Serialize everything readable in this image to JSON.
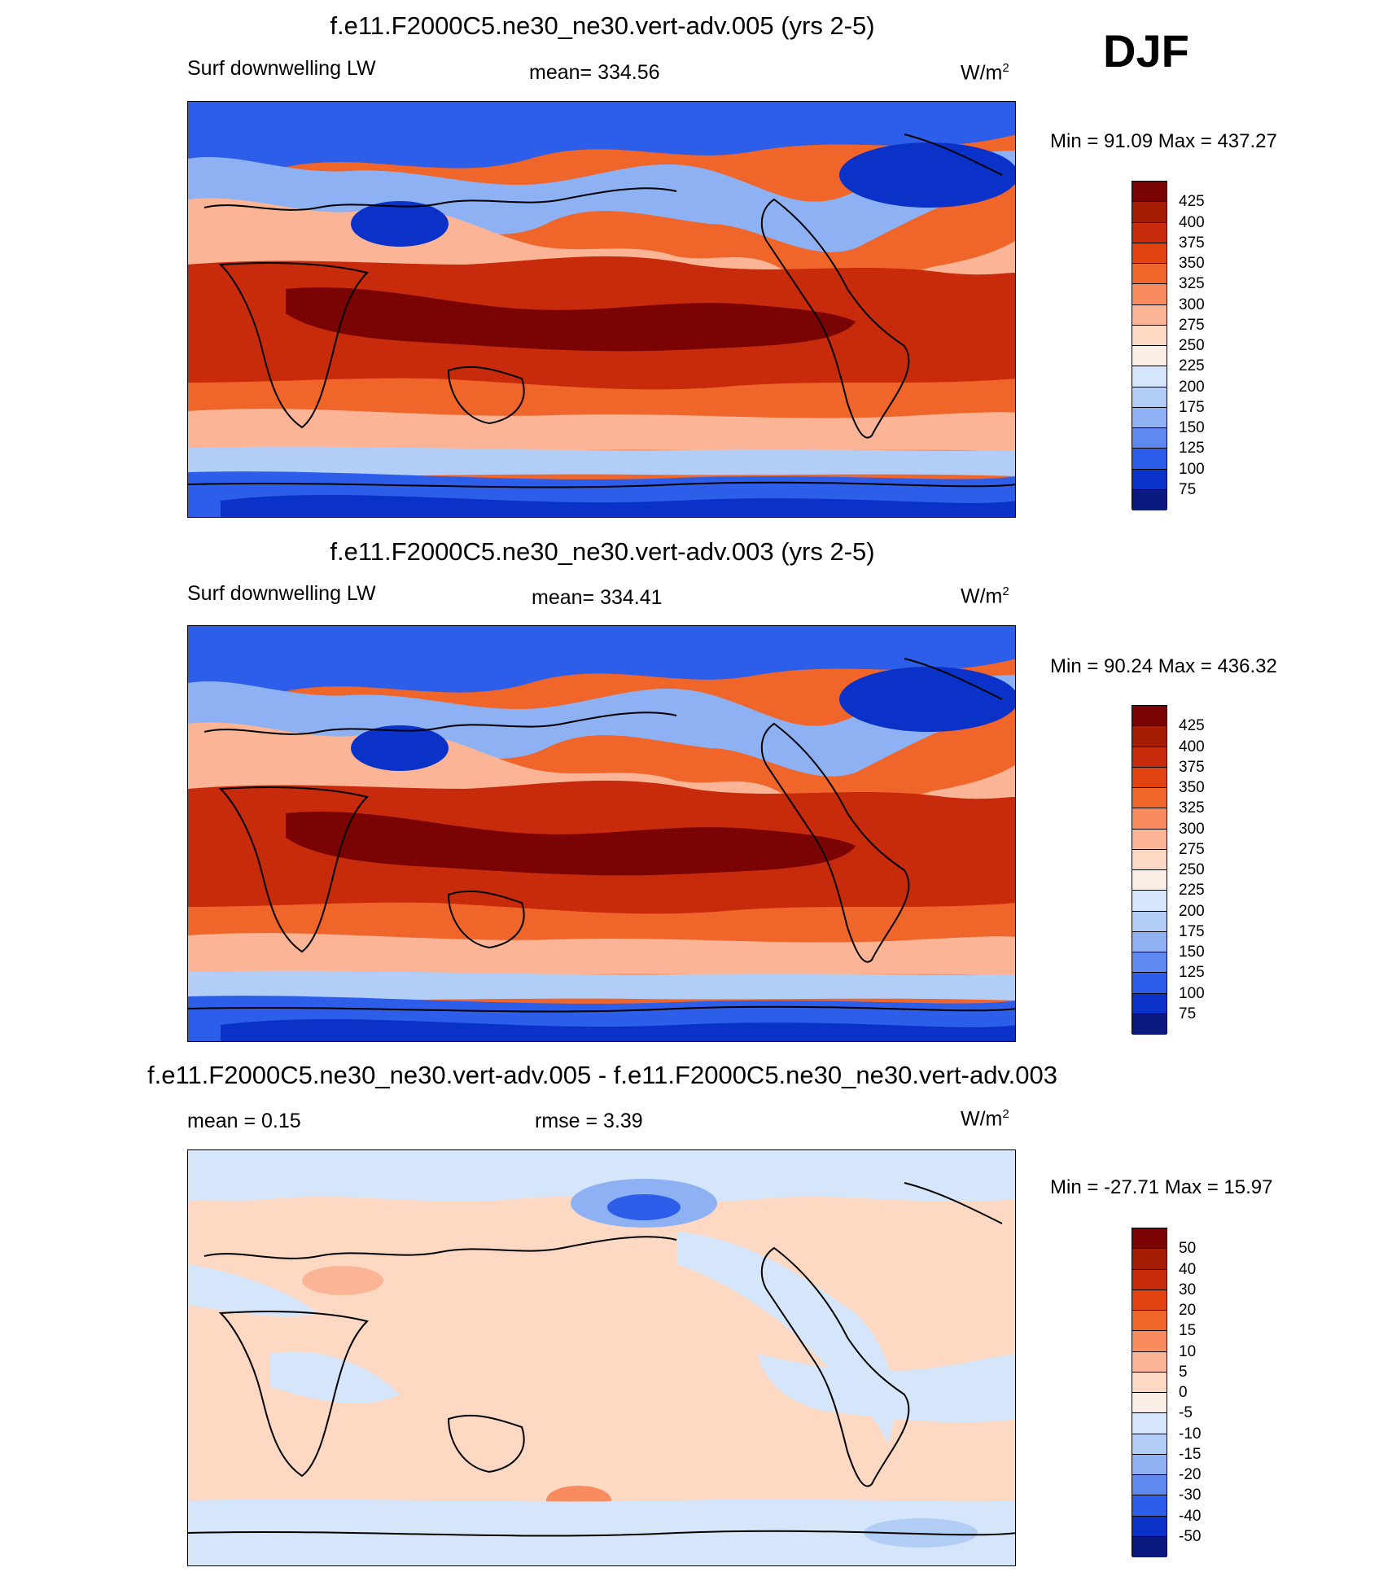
{
  "season": "DJF",
  "panels": [
    {
      "title": "f.e11.F2000C5.ne30_ne30.vert-adv.005 (yrs 2-5)",
      "left_label": "Surf downwelling LW",
      "center_label": "mean= 334.56",
      "units_base": "W/m",
      "units_exp": "2",
      "minmax": "Min =  91.09 Max = 437.27",
      "kind": "abs"
    },
    {
      "title": "f.e11.F2000C5.ne30_ne30.vert-adv.003 (yrs 2-5)",
      "left_label": "Surf downwelling LW",
      "center_label": "mean= 334.41",
      "units_base": "W/m",
      "units_exp": "2",
      "minmax": "Min =  90.24 Max = 436.32",
      "kind": "abs"
    },
    {
      "title": "f.e11.F2000C5.ne30_ne30.vert-adv.005 - f.e11.F2000C5.ne30_ne30.vert-adv.003",
      "left_label": "mean =   0.15",
      "center_label": "rmse =   3.39",
      "units_base": "W/m",
      "units_exp": "2",
      "minmax": "Min = -27.71 Max =  15.97",
      "kind": "diff"
    }
  ],
  "colorbars": {
    "abs": {
      "labels": [
        "425",
        "400",
        "375",
        "350",
        "325",
        "300",
        "275",
        "250",
        "225",
        "200",
        "175",
        "150",
        "125",
        "100",
        "75"
      ],
      "colors": [
        "#7a0403",
        "#a51d05",
        "#c82b0b",
        "#e1420f",
        "#f0652a",
        "#f88c5e",
        "#fbb596",
        "#fdd9c4",
        "#fbeee6",
        "#d6e6fa",
        "#b2cdf6",
        "#8db1f3",
        "#5e8af0",
        "#2d5eea",
        "#0a32c8",
        "#0a1a7e"
      ]
    },
    "diff": {
      "labels": [
        "50",
        "40",
        "30",
        "20",
        "15",
        "10",
        "5",
        "0",
        "-5",
        "-10",
        "-15",
        "-20",
        "-30",
        "-40",
        "-50"
      ],
      "colors": [
        "#7a0403",
        "#a51d05",
        "#c82b0b",
        "#e1420f",
        "#f0652a",
        "#f88c5e",
        "#fbb596",
        "#fdd9c4",
        "#fbeee6",
        "#d6e6fa",
        "#b2cdf6",
        "#8db1f3",
        "#5e8af0",
        "#2d5eea",
        "#0a32c8",
        "#0a1a7e"
      ]
    }
  }
}
